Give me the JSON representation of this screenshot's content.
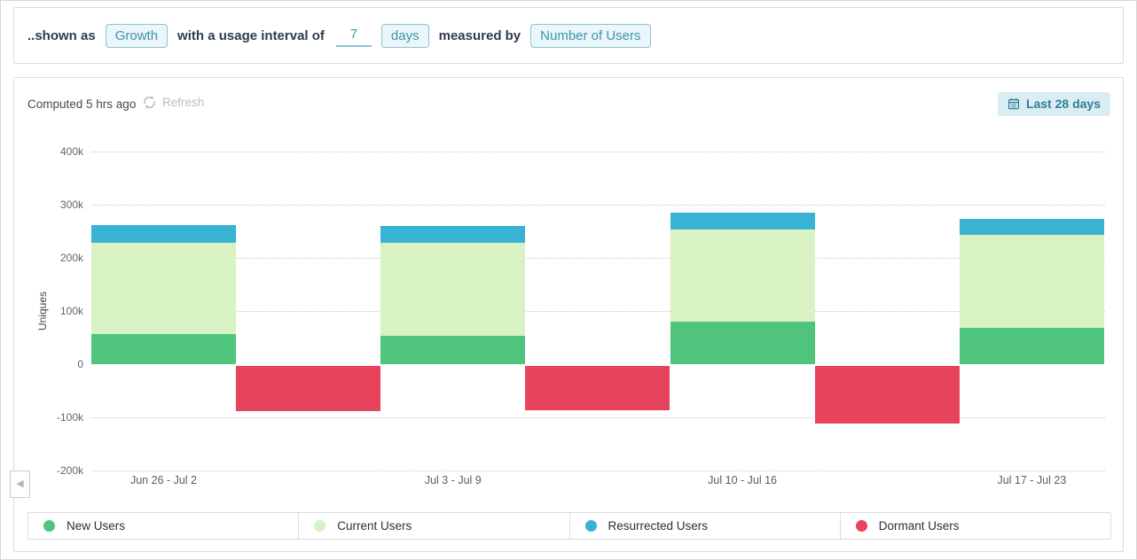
{
  "filter_bar": {
    "prefix": "..shown as",
    "metric_chip": "Growth",
    "interval_text": "with a usage interval of",
    "interval_value": "7",
    "interval_unit_chip": "days",
    "measured_text": "measured by",
    "measure_chip": "Number of Users"
  },
  "chart_panel": {
    "computed_text": "Computed 5 hrs ago",
    "refresh_label": "Refresh",
    "date_range_label": "Last 28 days"
  },
  "icons": {
    "refresh": "refresh-icon (circular arrows)",
    "calendar": "calendar-icon",
    "scroll_left_glyph": "◀"
  },
  "theme": {
    "chip_text": "#3d94ab",
    "chip_border": "#8ac4d2",
    "chip_bg": "#eaf6f9",
    "daterange_bg": "#d9edf3",
    "daterange_text": "#2d7f99",
    "header_text": "#2d3c4e",
    "panel_border": "#dcdcdc",
    "gridline": "#c9c9c9"
  },
  "chart_data": {
    "type": "bar",
    "stacked": true,
    "title": "",
    "xlabel": "",
    "ylabel": "Uniques",
    "ylim": [
      -200000,
      400000
    ],
    "y_tick_labels": [
      "400k",
      "300k",
      "200k",
      "100k",
      "0",
      "-100k",
      "-200k"
    ],
    "grid": "horizontal-dotted",
    "legend_position": "bottom",
    "categories": [
      "Jun 26 - Jul 2",
      "Jul 3 - Jul 9",
      "Jul 10 - Jul 16",
      "Jul 17 - Jul 23"
    ],
    "series": [
      {
        "name": "New Users",
        "color": "#4fc47d",
        "values": [
          57000,
          53000,
          80000,
          68000
        ]
      },
      {
        "name": "Current Users",
        "color": "#d8f2c3",
        "values": [
          172000,
          175000,
          173000,
          175000
        ]
      },
      {
        "name": "Resurrected Users",
        "color": "#39b3d3",
        "values": [
          33000,
          32000,
          32000,
          30000
        ]
      },
      {
        "name": "Dormant Users",
        "color": "#e8435c",
        "values": [
          -88000,
          -86000,
          -111000,
          null
        ]
      }
    ]
  }
}
